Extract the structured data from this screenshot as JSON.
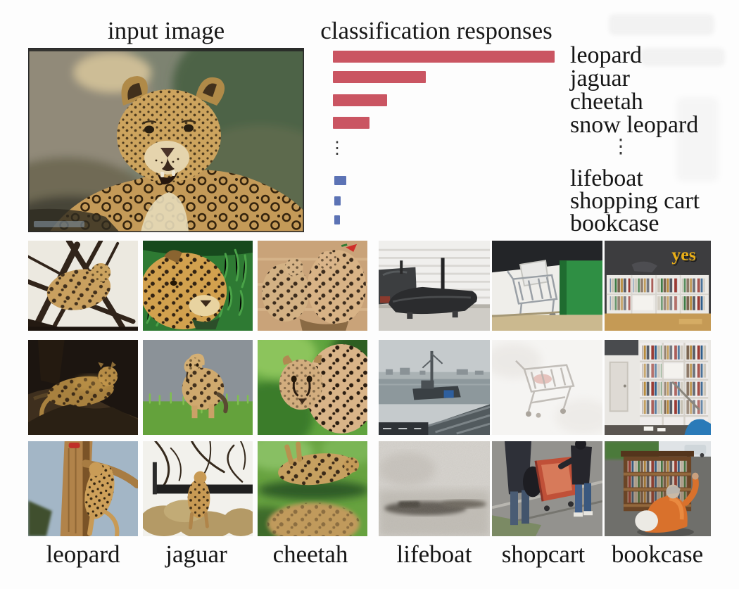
{
  "figure": {
    "input_image_title": "input image",
    "chart_title": "classification responses"
  },
  "chart_data": {
    "type": "bar",
    "orientation": "horizontal",
    "title": "classification responses",
    "value_axis_hidden": true,
    "xlim": [
      0,
      1
    ],
    "ellipsis": "⋮",
    "bar_color_top": "#ca5562",
    "bar_color_bottom": "#5c73b5",
    "groups": [
      {
        "name": "top-responses",
        "color": "#ca5562",
        "items": [
          {
            "label": "leopard",
            "value": 1.0
          },
          {
            "label": "jaguar",
            "value": 0.42
          },
          {
            "label": "cheetah",
            "value": 0.245
          },
          {
            "label": "snow leopard",
            "value": 0.165
          }
        ]
      },
      {
        "name": "lowest-responses",
        "color": "#5c73b5",
        "items": [
          {
            "label": "lifeboat",
            "value": 0.054
          },
          {
            "label": "shopping cart",
            "value": 0.029
          },
          {
            "label": "bookcase",
            "value": 0.026
          }
        ]
      }
    ]
  },
  "input_image": {
    "subject": "leopard close-up photo"
  },
  "grid": {
    "column_labels": [
      "leopard",
      "jaguar",
      "cheetah",
      "lifeboat",
      "shopcart",
      "bookcase"
    ],
    "bookcase_caption": "yes",
    "rows": [
      [
        "leopard resting in bare tree",
        "jaguar head in green grass",
        "two cheetahs on sand",
        "black lifeboat hull by white shed",
        "shopping cart by green dumpster",
        "white bookcase with yes sign"
      ],
      [
        "leopard lying on rock at night",
        "cheetah cub standing in grass",
        "cheetah face against green",
        "harbour with moored ships",
        "faint shopping cart on white",
        "tall bookcase with blue chair"
      ],
      [
        "leopard descending tree trunk",
        "cheetah on rocks under branches",
        "cheetahs rolling in grass",
        "grainy grey sea with boat",
        "people pushing red shopping cart",
        "man in orange shirt at wooden bookcase"
      ]
    ]
  }
}
